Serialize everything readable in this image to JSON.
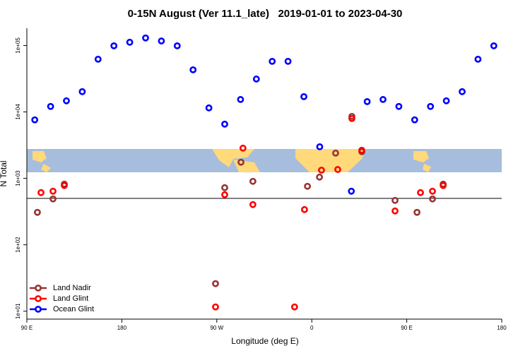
{
  "chart_data": {
    "type": "scatter",
    "title": "0-15N August (Ver 11.1_late)   2019-01-01 to 2023-04-30",
    "x_label": "Longitude (deg E)",
    "y_label": "N Total",
    "log_y": true,
    "xlim": [
      90,
      540
    ],
    "ylim": [
      7.6,
      182000
    ],
    "xticks": [
      {
        "value": 90,
        "label": "90 E"
      },
      {
        "value": 180,
        "label": "180"
      },
      {
        "value": 270,
        "label": "90 W"
      },
      {
        "value": 360,
        "label": "0"
      },
      {
        "value": 450,
        "label": "90 E"
      },
      {
        "value": 540,
        "label": "180"
      }
    ],
    "yticks": [
      {
        "value": 10,
        "label": "1e+01"
      },
      {
        "value": 100,
        "label": "1e+02"
      },
      {
        "value": 1000,
        "label": "1e+03"
      },
      {
        "value": 10000,
        "label": "1e+04"
      },
      {
        "value": 100000,
        "label": "1e+05"
      }
    ],
    "hline": 500,
    "legend": "bottom-left",
    "series": [
      {
        "name": "Land Nadir",
        "color": "#993333",
        "x": [
          100.0,
          114.8,
          125.5,
          268.8,
          277.5,
          292.9,
          304.2,
          355.9,
          367.3,
          382.6,
          398.0,
          407.4,
          438.9,
          459.7,
          474.4,
          484.5
        ],
        "values": [
          308,
          490,
          818,
          26,
          724,
          1750,
          902,
          760,
          1045,
          2400,
          8570,
          2520,
          466,
          308,
          490,
          818
        ]
      },
      {
        "name": "Land Glint",
        "color": "#ff0000",
        "x": [
          103.4,
          114.8,
          125.5,
          268.8,
          277.5,
          294.8,
          304.2,
          343.7,
          353.1,
          369.2,
          384.6,
          398.0,
          407.4,
          438.9,
          463.0,
          474.4,
          484.5
        ],
        "values": [
          610,
          641,
          780,
          11.6,
          567,
          2850,
          403,
          11.6,
          339,
          1330,
          1360,
          7960,
          2650,
          323,
          610,
          641,
          780
        ]
      },
      {
        "name": "Ocean Glint",
        "color": "#0000ff",
        "x": [
          97.5,
          112.5,
          127.5,
          142.5,
          157.5,
          172.5,
          187.5,
          202.5,
          217.5,
          232.5,
          247.5,
          262.5,
          277.5,
          292.5,
          307.5,
          322.5,
          337.5,
          352.5,
          367.5,
          397.5,
          412.5,
          427.5,
          442.5,
          457.5,
          472.5,
          487.5,
          502.5,
          517.5,
          532.5
        ],
        "values": [
          7600,
          12100,
          14700,
          20200,
          62200,
          99000,
          112000,
          130000,
          117000,
          99000,
          43100,
          11500,
          6550,
          15400,
          31300,
          57800,
          57800,
          17000,
          2990,
          641,
          14300,
          15400,
          12100,
          7600,
          12100,
          14700,
          20200,
          62200,
          99000
        ]
      }
    ]
  }
}
